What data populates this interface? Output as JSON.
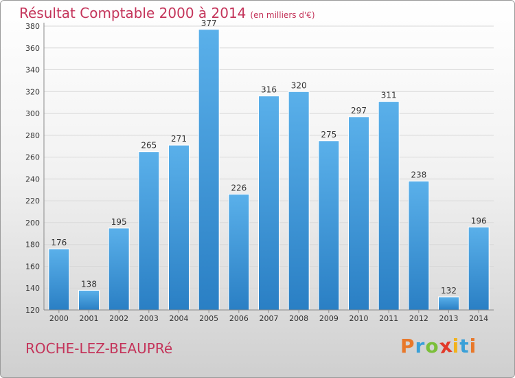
{
  "header": {
    "title": "Résultat Comptable 2000 à 2014",
    "subtitle": "(en milliers d'€)"
  },
  "footer": {
    "commune": "ROCHE-LEZ-BEAUPRé",
    "logo_text": "Proxiti",
    "logo_colors": [
      "#e8782a",
      "#3aa0d8",
      "#7bbf3a",
      "#e23a2a",
      "#f2b21c",
      "#3aa0d8",
      "#e8782a"
    ]
  },
  "chart_data": {
    "type": "bar",
    "title": "Résultat Comptable 2000 à 2014",
    "subtitle": "(en milliers d'€)",
    "categories": [
      "2000",
      "2001",
      "2002",
      "2003",
      "2004",
      "2005",
      "2006",
      "2007",
      "2008",
      "2009",
      "2010",
      "2011",
      "2012",
      "2013",
      "2014"
    ],
    "values": [
      176,
      138,
      195,
      265,
      271,
      377,
      226,
      316,
      320,
      275,
      297,
      311,
      238,
      132,
      196
    ],
    "ylim": [
      120,
      380
    ],
    "yticks": [
      120,
      140,
      160,
      180,
      200,
      220,
      240,
      260,
      280,
      300,
      320,
      340,
      360,
      380
    ],
    "grid": true,
    "bar_color_top": "#5ab0ea",
    "bar_color_bottom": "#2a7fc4"
  }
}
